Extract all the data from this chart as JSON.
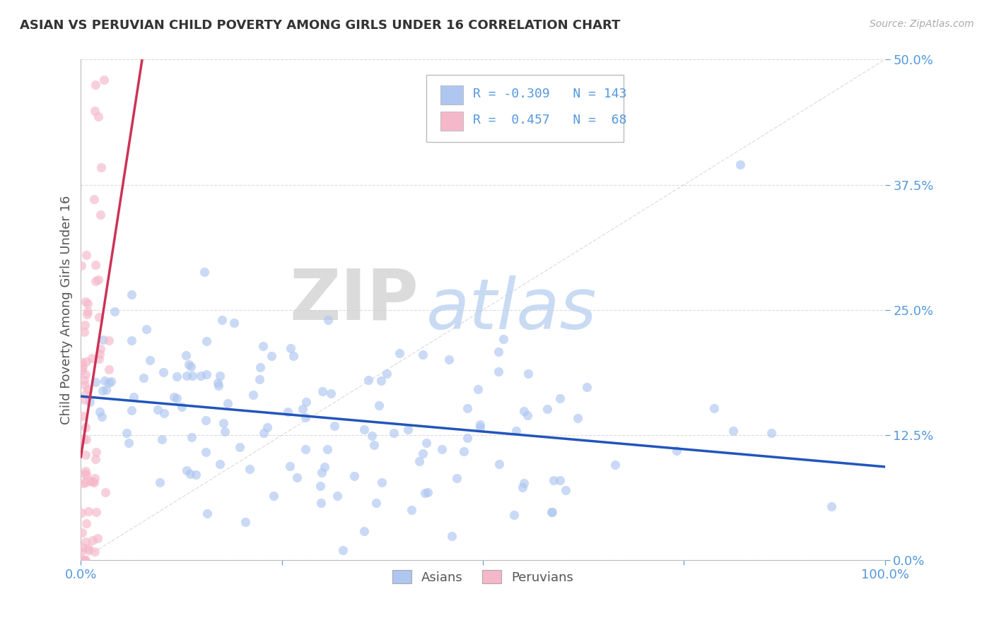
{
  "title": "ASIAN VS PERUVIAN CHILD POVERTY AMONG GIRLS UNDER 16 CORRELATION CHART",
  "source": "Source: ZipAtlas.com",
  "ylabel_label": "Child Poverty Among Girls Under 16",
  "legend_entries": [
    {
      "label": "Asians",
      "R": "-0.309",
      "N": "143",
      "color": "#aec6f0",
      "line_color": "#2255bb"
    },
    {
      "label": "Peruvians",
      "R": "0.457",
      "N": "68",
      "color": "#f5b8ca",
      "line_color": "#cc3355"
    }
  ],
  "watermark_zip": "ZIP",
  "watermark_atlas": "atlas",
  "watermark_zip_color": "#d0d0d0",
  "watermark_atlas_color": "#b8cff0",
  "background_color": "#ffffff",
  "grid_color": "#cccccc",
  "title_color": "#333333",
  "tick_color": "#5599dd",
  "source_color": "#aaaaaa",
  "asian_R": -0.309,
  "asian_N": 143,
  "peruvian_R": 0.457,
  "peruvian_N": 68,
  "xlim": [
    0.0,
    1.0
  ],
  "ylim": [
    0.0,
    0.5
  ],
  "yticks": [
    0.0,
    0.125,
    0.25,
    0.375,
    0.5
  ],
  "xticks": [
    0.0,
    0.25,
    0.5,
    0.75,
    1.0
  ]
}
